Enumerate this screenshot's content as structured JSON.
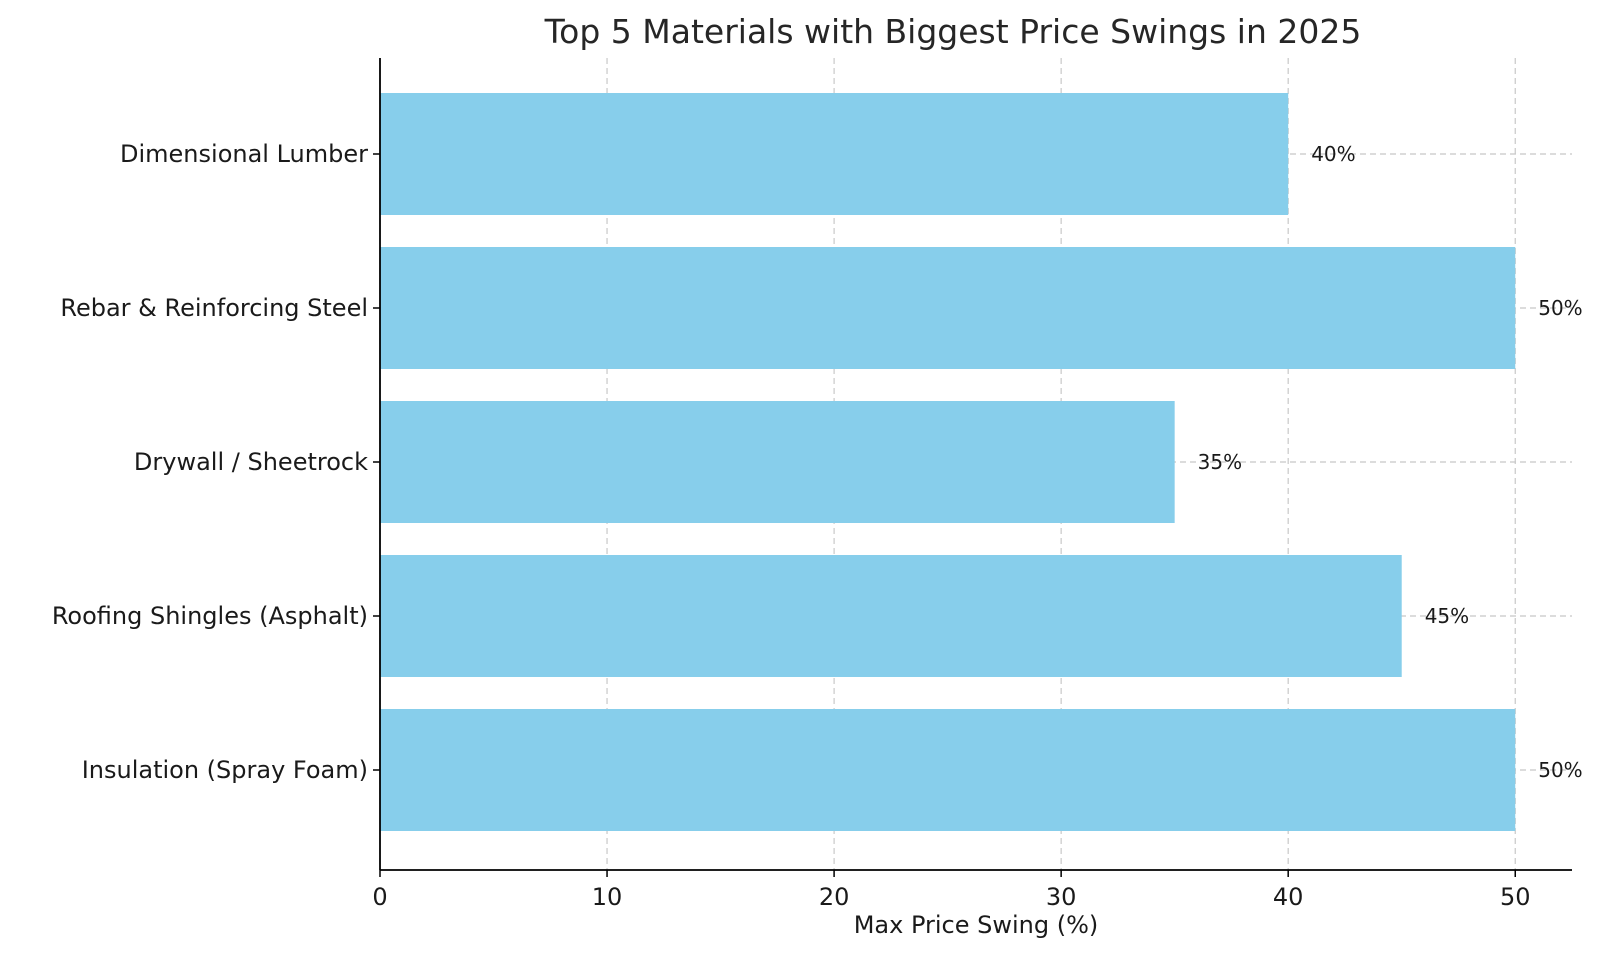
{
  "chart_data": {
    "type": "bar",
    "orientation": "horizontal",
    "title": "Top 5 Materials with Biggest Price Swings in 2025",
    "xlabel": "Max Price Swing (%)",
    "ylabel": "",
    "categories": [
      "Dimensional Lumber",
      "Rebar & Reinforcing Steel",
      "Drywall / Sheetrock",
      "Roofing Shingles (Asphalt)",
      "Insulation (Spray Foam)"
    ],
    "values": [
      40,
      50,
      35,
      45,
      50
    ],
    "value_labels": [
      "40%",
      "50%",
      "35%",
      "45%",
      "50%"
    ],
    "xlim": [
      0,
      52.5
    ],
    "xticks": [
      0,
      10,
      20,
      30,
      40,
      50
    ],
    "xtick_labels": [
      "0",
      "10",
      "20",
      "30",
      "40",
      "50"
    ],
    "grid": true,
    "bar_color": "#87ceeb"
  }
}
